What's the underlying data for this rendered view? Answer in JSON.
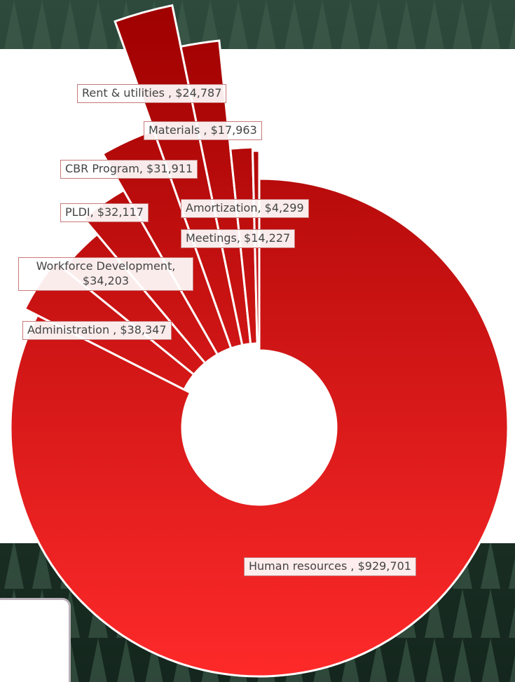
{
  "chart_data": {
    "type": "pie",
    "color": "#ff2a2a",
    "values": [
      929701,
      38347,
      34203,
      32117,
      31911,
      24787,
      17963,
      14227,
      4299
    ],
    "value_labels": [
      "Human resources , $929,701",
      "Administration , $38,347",
      "Workforce Development, $34,203",
      "PLDI, $32,117",
      "CBR Program, $31,911",
      "Rent & utilities , $24,787",
      "Materials , $17,963",
      "Meetings, $14,227",
      "Amortization, $4,299"
    ]
  }
}
